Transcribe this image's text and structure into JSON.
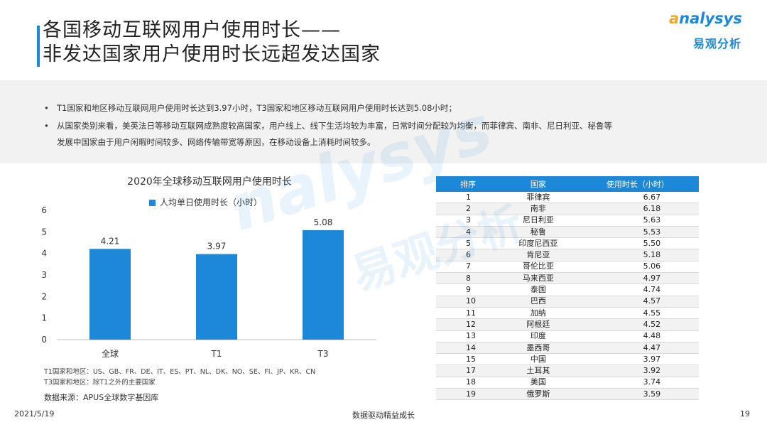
{
  "header": {
    "title_line1": "各国移动互联网用户使用时长——",
    "title_line2": "非发达国家用户使用时长远超发达国家",
    "logo_en_prefix": "a",
    "logo_en_rest": "nalysys",
    "logo_cn": "易观分析"
  },
  "summary": {
    "bullets": [
      {
        "dot": "•",
        "text": "T1国家和地区移动互联网用户使用时长达到3.97小时，T3国家和地区移动互联网用户使用时长达到5.08小时；"
      },
      {
        "dot": "•",
        "text": "从国家类别来看，美英法日等移动互联网成熟度较高国家，用户线上、线下生活均较为丰富，日常时间分配较为均衡，而菲律宾、南非、尼日利亚、秘鲁等"
      },
      {
        "dot": "",
        "text": "发展中国家由于用户闲暇时间较多、网络传输带宽等原因，在移动设备上消耗时间较多。"
      }
    ]
  },
  "chart_data": {
    "type": "bar",
    "title": "2020年全球移动互联网用户使用时长",
    "categories": [
      "全球",
      "T1",
      "T3"
    ],
    "series": [
      {
        "name": "人均单日使用时长（小时）",
        "values": [
          4.21,
          3.97,
          5.08
        ]
      }
    ],
    "value_labels": [
      "4.21",
      "3.97",
      "5.08"
    ],
    "ylim": [
      0,
      6
    ],
    "yticks": [
      "0",
      "1",
      "2",
      "3",
      "4",
      "5",
      "6"
    ],
    "xlabel": "",
    "ylabel": "",
    "color": "#1e88d8"
  },
  "notes": {
    "t1": "T1国家和地区：US、GB、FR、DE、IT、ES、PT、NL、DK、NO、SE、FI、JP、KR、CN",
    "t3": "T3国家和地区：除T1之外的主要国家",
    "source": "数据来源：APUS全球数字基因库"
  },
  "table": {
    "headers": [
      "排序",
      "国家",
      "使用时长（小时）"
    ],
    "rows": [
      [
        "1",
        "菲律宾",
        "6.67"
      ],
      [
        "2",
        "南非",
        "6.18"
      ],
      [
        "3",
        "尼日利亚",
        "5.63"
      ],
      [
        "4",
        "秘鲁",
        "5.53"
      ],
      [
        "5",
        "印度尼西亚",
        "5.50"
      ],
      [
        "6",
        "肯尼亚",
        "5.18"
      ],
      [
        "7",
        "哥伦比亚",
        "5.06"
      ],
      [
        "8",
        "马来西亚",
        "4.97"
      ],
      [
        "9",
        "泰国",
        "4.74"
      ],
      [
        "10",
        "巴西",
        "4.57"
      ],
      [
        "11",
        "加纳",
        "4.55"
      ],
      [
        "12",
        "阿根廷",
        "4.52"
      ],
      [
        "13",
        "印度",
        "4.48"
      ],
      [
        "14",
        "墨西哥",
        "4.47"
      ],
      [
        "15",
        "中国",
        "3.97"
      ],
      [
        "17",
        "土耳其",
        "3.92"
      ],
      [
        "18",
        "美国",
        "3.74"
      ],
      [
        "19",
        "俄罗斯",
        "3.59"
      ]
    ]
  },
  "footer": {
    "date": "2021/5/19",
    "slogan": "数据驱动精益成长",
    "page": "19"
  }
}
